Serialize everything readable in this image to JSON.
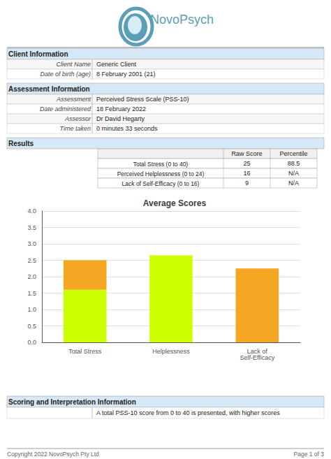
{
  "chart_data": {
    "type": "bar",
    "title": "Average Scores",
    "categories": [
      "Total Stress",
      "Helplessness",
      "Lack of\nSelf-Efficacy"
    ],
    "stacked": true,
    "series": [
      {
        "color": "#ccff00",
        "values": [
          1.6,
          2.65,
          0.0
        ]
      },
      {
        "color": "#f5a623",
        "values": [
          0.9,
          0.0,
          2.25
        ]
      }
    ],
    "ylim": [
      0,
      4
    ],
    "yticks": [
      {
        "value": 0,
        "label": "0.0"
      },
      0.5,
      {
        "value": 1,
        "label": "1.0"
      },
      1.5,
      {
        "value": 2,
        "label": "2.0"
      },
      2.5,
      {
        "value": 3,
        "label": "3.0"
      },
      3.5,
      {
        "value": 4,
        "label": "4.0"
      }
    ],
    "grid": true,
    "annotations": [
      [
        "NovoPsych"
      ],
      [
        "Client Information"
      ],
      [
        "Client Name",
        "Generic Client"
      ],
      [
        "Date of birth (age)",
        "8 February 2001 (21)"
      ],
      [
        "Assessment Information"
      ],
      [
        "Assessment",
        "Perceived Stress Scale (PSS-10)"
      ],
      [
        "Date administered",
        "18 February 2022"
      ],
      [
        "Assessor",
        "Dr David Hegarty"
      ],
      [
        "Time taken",
        "0 minutes 33 seconds"
      ],
      [
        "Results"
      ],
      [
        "Raw Score",
        "Percentile"
      ],
      [
        "Total Stress (0 to 40)",
        "25",
        "88.5"
      ],
      [
        "Perceived Helplessness (0 to 24)",
        "16",
        "N/A"
      ],
      [
        "Lack of Self-Efficacy (0 to 16)",
        "9",
        "N/A"
      ],
      [
        "Scoring and Interpretation Information"
      ],
      [
        "A total PSS-10 score from 0 to 40 is presented, with higher scores"
      ],
      [
        "Copyright 2022 NovoPsych Pty Ltd",
        "Page 1 of 3"
      ]
    ]
  }
}
